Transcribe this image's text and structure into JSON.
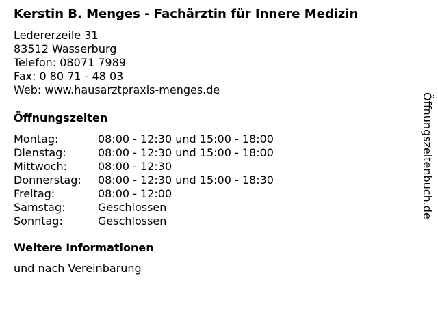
{
  "title": "Kerstin B. Menges - Fachärztin für Innere Medizin",
  "address": [
    "Ledererzeile 31",
    "83512 Wasserburg",
    "Telefon: 08071 7989",
    "Fax: 0 80 71 - 48 03",
    "Web: www.hausarztpraxis-menges.de"
  ],
  "hours_heading": "Öffnungszeiten",
  "hours": [
    {
      "day": "Montag:",
      "time": "08:00 - 12:30 und 15:00 - 18:00"
    },
    {
      "day": "Dienstag:",
      "time": "08:00 - 12:30 und 15:00 - 18:00"
    },
    {
      "day": "Mittwoch:",
      "time": "08:00 - 12:30"
    },
    {
      "day": "Donnerstag:",
      "time": "08:00 - 12:30 und 15:00 - 18:30"
    },
    {
      "day": "Freitag:",
      "time": "08:00 - 12:00"
    },
    {
      "day": "Samstag:",
      "time": "Geschlossen"
    },
    {
      "day": "Sonntag:",
      "time": "Geschlossen"
    }
  ],
  "info_heading": "Weitere Informationen",
  "info_text": "und nach Vereinbarung",
  "watermark": "Öffnungszeitenbuch.de"
}
